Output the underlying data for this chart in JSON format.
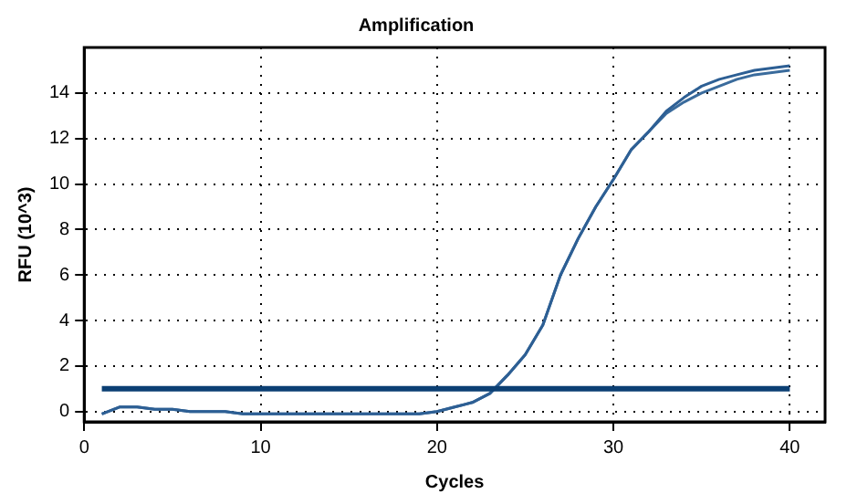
{
  "chart_data": {
    "type": "line",
    "title": "Amplification",
    "xlabel": "Cycles",
    "ylabel": "RFU (10^3)",
    "x": [
      1,
      2,
      3,
      4,
      5,
      6,
      7,
      8,
      9,
      10,
      11,
      12,
      13,
      14,
      15,
      16,
      17,
      18,
      19,
      20,
      21,
      22,
      23,
      24,
      25,
      26,
      27,
      28,
      29,
      30,
      31,
      32,
      33,
      34,
      35,
      36,
      37,
      38,
      39,
      40
    ],
    "series": [
      {
        "color": "#2d5f94",
        "values": [
          -0.1,
          0.2,
          0.2,
          0.1,
          0.1,
          0,
          0,
          0,
          -0.1,
          -0.1,
          -0.1,
          -0.1,
          -0.1,
          -0.1,
          -0.1,
          -0.1,
          -0.1,
          -0.1,
          -0.1,
          0,
          0.2,
          0.4,
          0.8,
          1.6,
          2.5,
          3.8,
          6.0,
          7.6,
          9.0,
          10.2,
          11.5,
          12.3,
          13.2,
          13.8,
          14.3,
          14.6,
          14.8,
          15.0,
          15.1,
          15.2
        ]
      },
      {
        "color": "#3a6b9c",
        "values": [
          -0.1,
          0.2,
          0.2,
          0.1,
          0.1,
          0,
          0,
          0,
          -0.1,
          -0.1,
          -0.1,
          -0.1,
          -0.1,
          -0.1,
          -0.1,
          -0.1,
          -0.1,
          -0.1,
          -0.1,
          0,
          0.2,
          0.4,
          0.8,
          1.6,
          2.5,
          3.8,
          6.0,
          7.6,
          9.0,
          10.2,
          11.5,
          12.3,
          13.1,
          13.6,
          14.0,
          14.3,
          14.6,
          14.8,
          14.9,
          15.0
        ]
      }
    ],
    "ref_lines": [
      {
        "axis": "y",
        "value": 1,
        "color": "#0b3f73"
      }
    ],
    "xlim": [
      0,
      42
    ],
    "xticks": [
      0,
      10,
      20,
      30,
      40
    ],
    "ylim": [
      -0.45,
      16
    ],
    "yticks": [
      0,
      2,
      4,
      6,
      8,
      10,
      12,
      14
    ],
    "grid": true,
    "legend": false,
    "marker": "none",
    "line_style": "solid"
  }
}
